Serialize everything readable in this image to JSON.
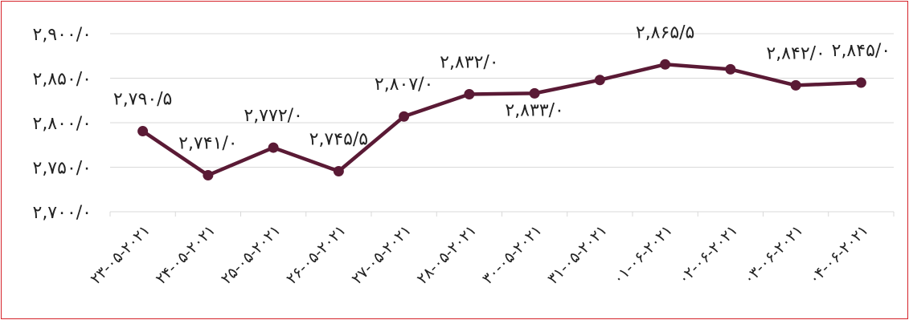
{
  "chart_data": {
    "type": "line",
    "title": "",
    "xlabel": "",
    "ylabel": "",
    "categories": [
      "۲۳-۰۵-۲۰۲۱",
      "۲۴-۰۵-۲۰۲۱",
      "۲۵-۰۵-۲۰۲۱",
      "۲۶-۰۵-۲۰۲۱",
      "۲۷-۰۵-۲۰۲۱",
      "۲۸-۰۵-۲۰۲۱",
      "۳۰-۰۵-۲۰۲۱",
      "۳۱-۰۵-۲۰۲۱",
      "۰۱-۰۶-۲۰۲۱",
      "۰۲-۰۶-۲۰۲۱",
      "۰۳-۰۶-۲۰۲۱",
      "۰۴-۰۶-۲۰۲۱"
    ],
    "values": [
      2790.5,
      2741.0,
      2772.0,
      2745.5,
      2807.0,
      2832.0,
      2833.0,
      2848.0,
      2865.5,
      2860.0,
      2842.0,
      2845.0
    ],
    "data_labels": [
      "۲,۷۹۰/۵",
      "۲,۷۴۱/۰",
      "۲,۷۷۲/۰",
      "۲,۷۴۵/۵",
      "۲,۸۰۷/۰",
      "۲,۸۳۲/۰",
      "۲,۸۳۳/۰",
      "",
      "۲,۸۶۵/۵",
      "",
      "۲,۸۴۲/۰",
      "۲,۸۴۵/۰"
    ],
    "ylim": [
      2700,
      2900
    ],
    "yticks": [
      2700,
      2750,
      2800,
      2850,
      2900
    ],
    "ytick_labels": [
      "۲,۷۰۰/۰",
      "۲,۷۵۰/۰",
      "۲,۸۰۰/۰",
      "۲,۸۵۰/۰",
      "۲,۹۰۰/۰"
    ],
    "grid": true,
    "line_color": "#5a1a35",
    "border_color": "#d6232a"
  }
}
